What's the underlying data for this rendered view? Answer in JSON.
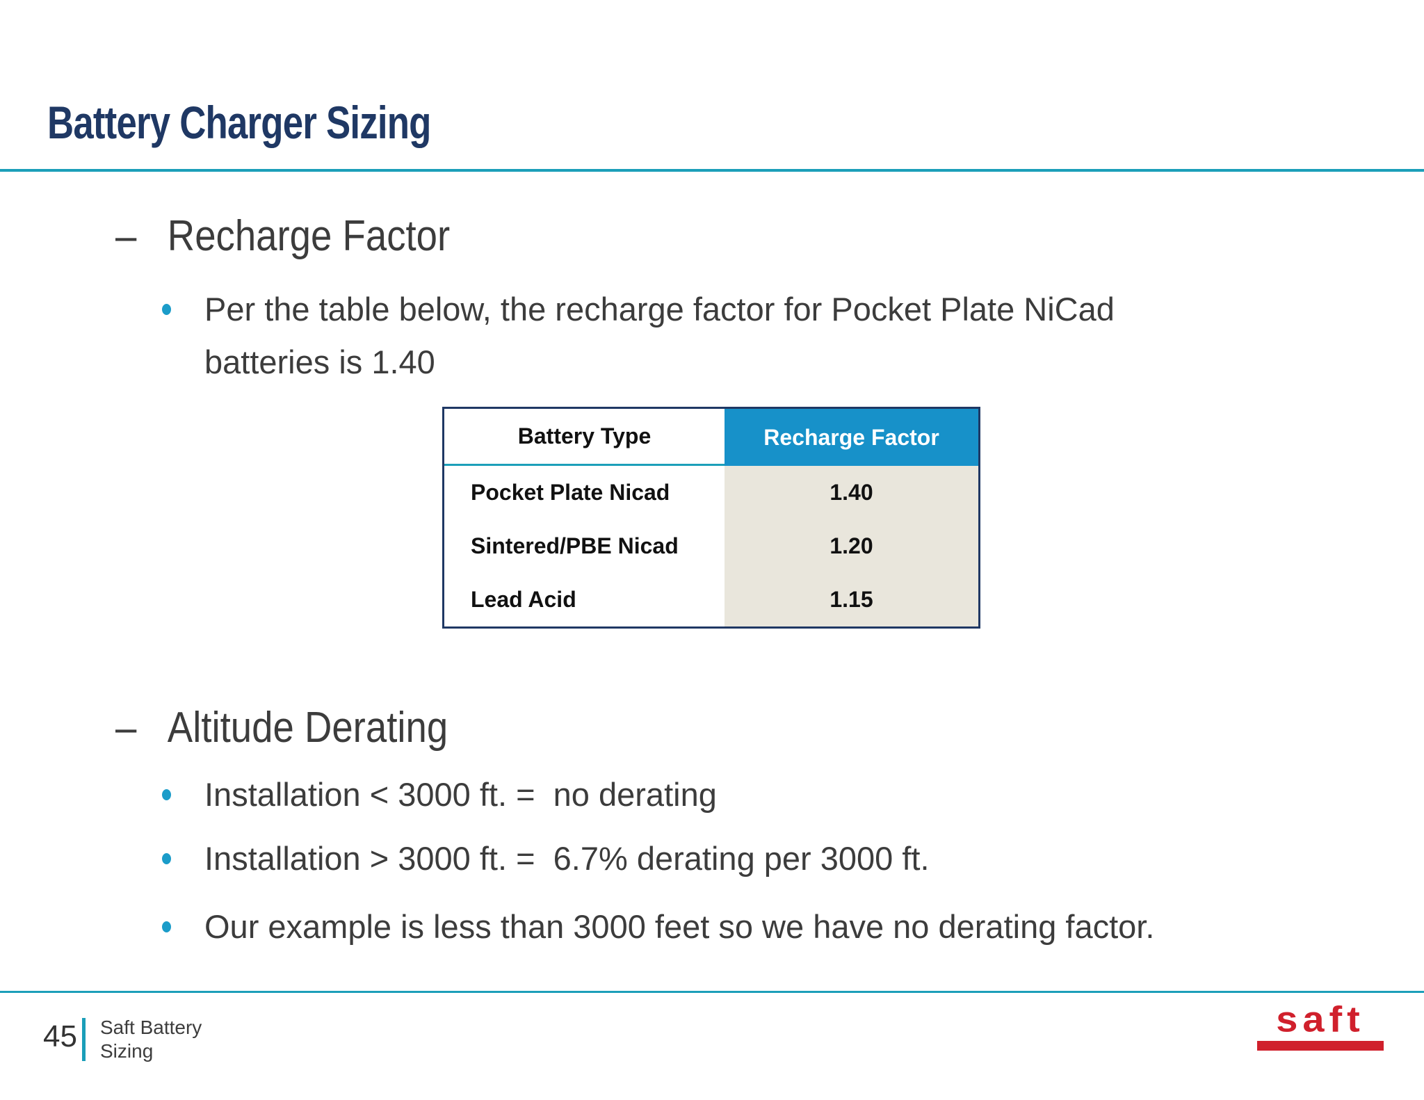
{
  "slide": {
    "title": "Battery Charger Sizing",
    "dash": "–",
    "sections": [
      {
        "heading": "Recharge Factor",
        "bullets": [
          "Per the table below, the recharge factor for Pocket Plate NiCad batteries is 1.40"
        ]
      },
      {
        "heading": "Altitude Derating",
        "bullets": [
          "Installation < 3000 ft. =  no derating",
          "Installation > 3000 ft. =  6.7% derating per 3000 ft.",
          "Our example is less than 3000 feet so we have no derating factor."
        ]
      }
    ],
    "table": {
      "headers": [
        "Battery Type",
        "Recharge Factor"
      ],
      "rows": [
        {
          "type": "Pocket Plate Nicad",
          "factor": "1.40"
        },
        {
          "type": "Sintered/PBE Nicad",
          "factor": "1.20"
        },
        {
          "type": "Lead Acid",
          "factor": "1.15"
        }
      ]
    },
    "footer": {
      "page_number": "45",
      "label_line1": "Saft Battery",
      "label_line2": "Sizing",
      "logo_text": "saft"
    },
    "colors": {
      "title_navy": "#1f3864",
      "divider_teal": "#1c9fb9",
      "table_header_blue": "#1791c9",
      "table_factor_beige": "#e9e6dc",
      "table_border_navy": "#1f3864",
      "bullet_dot_blue": "#1b9cc9",
      "body_text": "#3c3c3c",
      "logo_red": "#d0202c"
    }
  }
}
